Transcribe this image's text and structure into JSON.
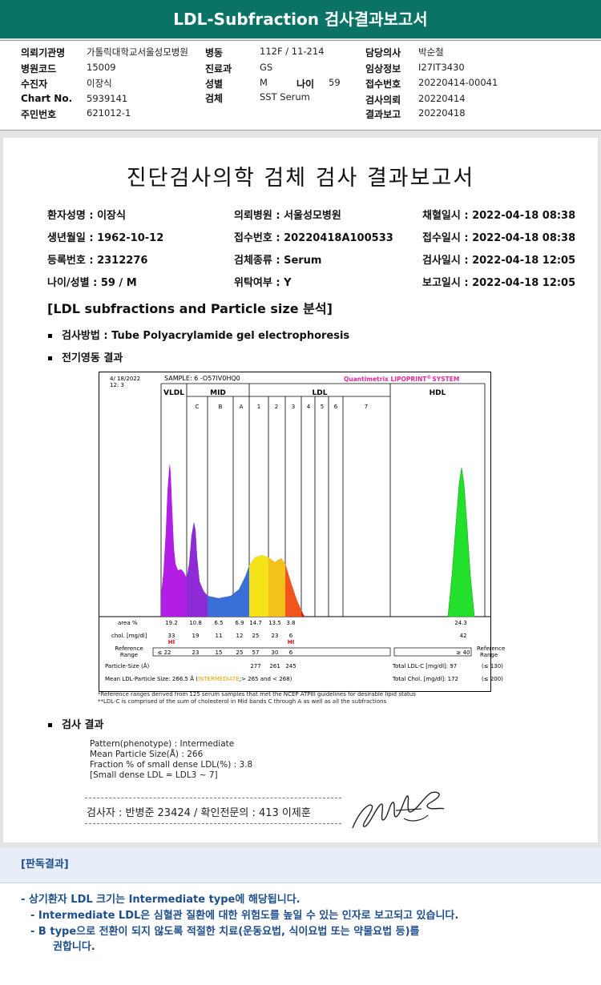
{
  "banner_title": "LDL-Subfraction 검사결과보고서",
  "info": {
    "col1": [
      {
        "k": "의뢰기관명",
        "v": "가톨릭대학교서울성모병원"
      },
      {
        "k": "병원코드",
        "v": "15009"
      },
      {
        "k": "수진자",
        "v": "이장식"
      },
      {
        "k": "Chart No.",
        "v": "5939141"
      },
      {
        "k": "주민번호",
        "v": "621012-1"
      }
    ],
    "col2": [
      {
        "k": "병동",
        "v": "112F / 11-214"
      },
      {
        "k": "진료과",
        "v": "GS"
      },
      {
        "k": "성별",
        "v": "M"
      },
      {
        "k": "검체",
        "v": "SST Serum"
      }
    ],
    "age_label": "나이",
    "age_value": "59",
    "col3": [
      {
        "k": "담당의사",
        "v": "박순철"
      },
      {
        "k": "임상정보",
        "v": "I27IT3430"
      },
      {
        "k": "접수번호",
        "v": "20220414-00041"
      },
      {
        "k": "검사의뢰",
        "v": "20220414"
      },
      {
        "k": "결과보고",
        "v": "20220418"
      }
    ]
  },
  "doc": {
    "title": "진단검사의학 검체 검사 결과보고서",
    "patient": [
      [
        "환자성명 : 이장식",
        "의뢰병원 : 서울성모병원",
        "채혈일시 : 2022-04-18 08:38"
      ],
      [
        "생년월일 : 1962-10-12",
        "접수번호 : 20220418A100533",
        "접수일시 : 2022-04-18 08:38"
      ],
      [
        "등록번호 : 2312276",
        "검체종류 : Serum",
        "검사일시 : 2022-04-18 12:05"
      ],
      [
        "나이/성별 : 59 / M",
        "위탁여부 : Y",
        "보고일시 : 2022-04-18 12:05"
      ]
    ],
    "section_title": "[LDL subfractions and Particle size 분석]",
    "method": "검사방법 : Tube Polyacrylamide gel electrophoresis",
    "electro": "전기영동 결과",
    "result_head": "검사 결과",
    "result_lines": [
      "Pattern(phenotype) : Intermediate",
      "Mean Particle Size(Å) : 266",
      "Fraction % of small dense LDL(%) : 3.8",
      "[Small dense LDL = LDL3 ~ 7]"
    ],
    "signer": "검사자 : 반병준  23424  /  확인전문의 : 413  이제훈",
    "notes": [
      "*Reference ranges derived from 125 serum samples that met the NCEP ATPIII guidelines for desirable lipid status",
      "**LDL-C is comprised of the sum of cholesterol in Mid bands C through A as well as all the subfractions"
    ]
  },
  "chart_data": {
    "type": "electrophoresis",
    "header_date": "4/ 18/2022",
    "header_time": "12: 3",
    "sample": "SAMPLE:  6 -O57IV0HQ0",
    "brand": "Quantimetrix LIPOPRINT",
    "brand_reg": "®",
    "brand_suffix": "SYSTEM",
    "groups": [
      "VLDL",
      "MID",
      "LDL",
      "HDL"
    ],
    "bands": [
      "C",
      "B",
      "A",
      "1",
      "2",
      "3",
      "4",
      "5",
      "6",
      "7"
    ],
    "rows": {
      "area_label": "area %",
      "area": [
        "19.2",
        "10.8",
        "6.5",
        "6.9",
        "14.7",
        "13.5",
        "3.8"
      ],
      "area_hdl": "24.3",
      "chol_label": "chol. [mg/dl]",
      "chol": [
        "33",
        "19",
        "11",
        "12",
        "25",
        "23",
        "6"
      ],
      "chol_hdl": "42",
      "hi_flags": [
        "HI",
        "HI"
      ],
      "ref_label": "Reference Range",
      "ref": [
        "≤ 22",
        "23",
        "15",
        "25",
        "57",
        "30",
        "6"
      ],
      "ref_hdl": "≥ 40",
      "ref_right": "Reference Range",
      "psize_label": "Particle-Size (Å)",
      "psize": [
        "277",
        "261",
        "245"
      ],
      "total_ldl": "Total LDL-C [mg/dl]:  97",
      "total_ldl_ref": "(≤ 130)",
      "mean_label": "Mean LDL-Particle Size:   266.5 Å",
      "mean_class": "INTERMEDIATE",
      "mean_range": "> 265 and < 268",
      "total_chol": "Total Chol. [mg/dl]:   172",
      "total_chol_ref": "(≤ 200)"
    }
  },
  "panel": {
    "header": "[판독결과]",
    "lines": [
      "-  상기환자 LDL 크기는 Intermediate type에 해당됩니다.",
      "-  Intermediate LDL은 심혈관 질환에 대한 위험도를 높일 수 있는 인자로 보고되고 있습니다.",
      "-  B type으로 전환이 되지 않도록 적절한 치료(운동요법, 식이요법 또는 약물요법 등)를",
      "권합니다."
    ]
  }
}
